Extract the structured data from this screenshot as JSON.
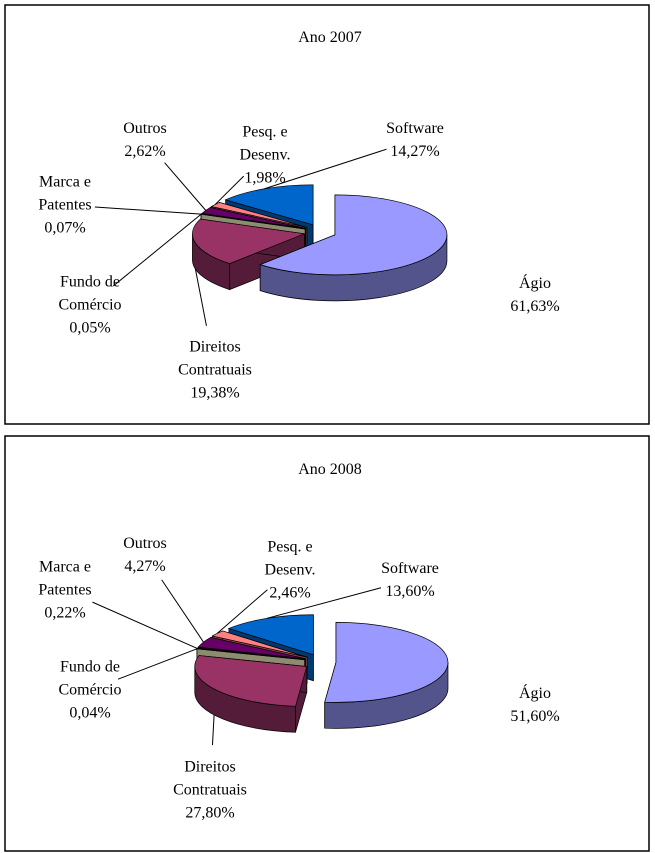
{
  "chart_data": [
    {
      "type": "pie",
      "title": "Ano 2007",
      "categories": [
        "Ágio",
        "Direitos Contratuais",
        "Fundo de Comércio",
        "Marca e Patentes",
        "Outros",
        "Pesq. e Desenv.",
        "Software"
      ],
      "values": [
        61.63,
        19.38,
        0.05,
        0.07,
        2.62,
        1.98,
        14.27
      ],
      "value_labels": [
        "61,63%",
        "19,38%",
        "0,05%",
        "0,07%",
        "2,62%",
        "1,98%",
        "14,27%"
      ],
      "colors": [
        "#9999ff",
        "#993366",
        "#ffffcc",
        "#ccffff",
        "#660066",
        "#ff8080",
        "#0066cc"
      ]
    },
    {
      "type": "pie",
      "title": "Ano 2008",
      "categories": [
        "Ágio",
        "Direitos Contratuais",
        "Fundo de Comércio",
        "Marca e Patentes",
        "Outros",
        "Pesq. e Desenv.",
        "Software"
      ],
      "values": [
        51.6,
        27.8,
        0.04,
        0.22,
        4.27,
        2.46,
        13.6
      ],
      "value_labels": [
        "51,60%",
        "27,80%",
        "0,04%",
        "0,22%",
        "4,27%",
        "2,46%",
        "13,60%"
      ],
      "colors": [
        "#9999ff",
        "#993366",
        "#ffffcc",
        "#ccffff",
        "#660066",
        "#ff8080",
        "#0066cc"
      ]
    }
  ]
}
